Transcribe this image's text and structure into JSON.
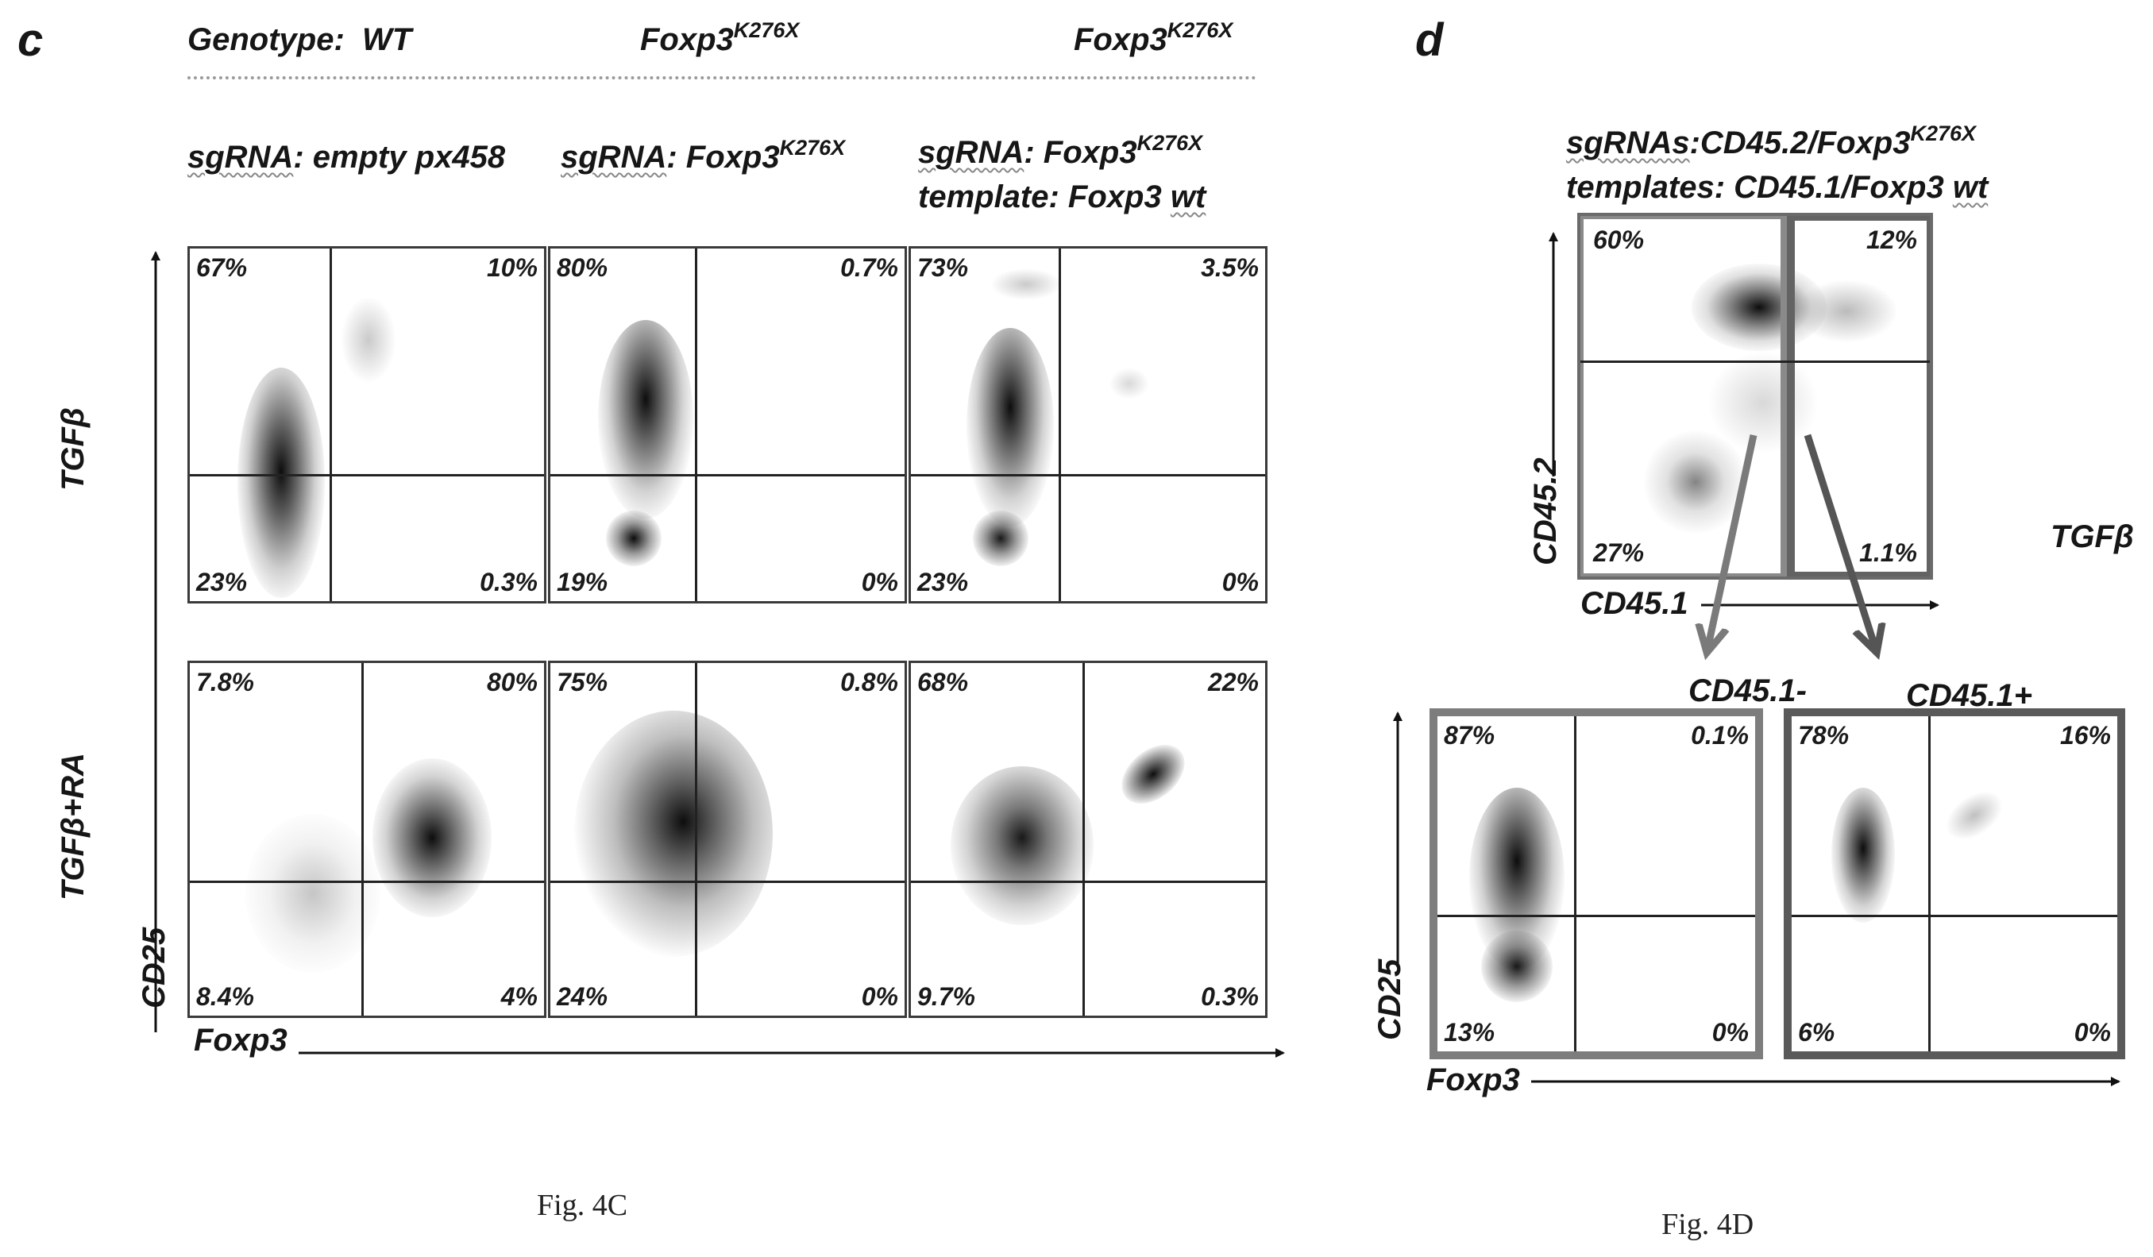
{
  "panel_c": {
    "letter": "c",
    "genotype_label": "Genotype:",
    "genotype_wt": "WT",
    "genotype_mut_base": "Foxp3",
    "genotype_mut_sup": "K276X",
    "sgrna1_prefix": "sgRNA",
    "sgrna1_rest": ": empty px458",
    "sgrna2_prefix": "sgRNA",
    "sgrna2_rest": ": Foxp3",
    "sgrna2_sup": "K276X",
    "sgrna3_prefix": "sgRNA",
    "sgrna3_rest": ": Foxp3",
    "sgrna3_sup": "K276X",
    "template_prefix": "template: Foxp3 ",
    "template_wt": "wt",
    "row1_label": "TGFβ",
    "row2_label": "TGFβ+RA",
    "y_axis_label": "CD25",
    "x_axis_label": "Foxp3",
    "caption": "Fig. 4C",
    "plots": [
      {
        "ul": "67%",
        "ur": "10%",
        "ll": "23%",
        "lr": "0.3%"
      },
      {
        "ul": "80%",
        "ur": "0.7%",
        "ll": "19%",
        "lr": "0%"
      },
      {
        "ul": "73%",
        "ur": "3.5%",
        "ll": "23%",
        "lr": "0%"
      },
      {
        "ul": "7.8%",
        "ur": "80%",
        "ll": "8.4%",
        "lr": "4%"
      },
      {
        "ul": "75%",
        "ur": "0.8%",
        "ll": "24%",
        "lr": "0%"
      },
      {
        "ul": "68%",
        "ur": "22%",
        "ll": "9.7%",
        "lr": "0.3%"
      }
    ]
  },
  "panel_d": {
    "letter": "d",
    "sgrnas_prefix": "sgRNAs",
    "sgrnas_rest": ":CD45.2/Foxp3",
    "sgrnas_sup": "K276X",
    "templates_text": "templates: CD45.1/Foxp3 ",
    "templates_wt": "wt",
    "top_plot": {
      "ul": "60%",
      "ur": "12%",
      "ll": "27%",
      "lr": "1.1%"
    },
    "top_y_label": "CD45.2",
    "top_x_label": "CD45.1",
    "condition_label": "TGFβ",
    "neg_title": "CD45.1-",
    "pos_title": "CD45.1+",
    "neg_plot": {
      "ul": "87%",
      "ur": "0.1%",
      "ll": "13%",
      "lr": "0%"
    },
    "pos_plot": {
      "ul": "78%",
      "ur": "16%",
      "ll": "6%",
      "lr": "0%"
    },
    "y_axis_label": "CD25",
    "x_axis_label": "Foxp3",
    "caption": "Fig. 4D"
  }
}
